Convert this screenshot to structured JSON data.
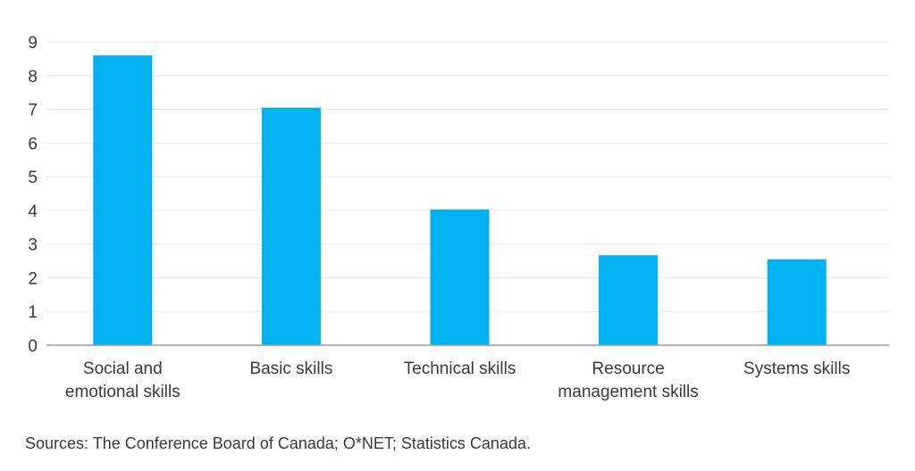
{
  "chart_data": {
    "type": "bar",
    "categories": [
      [
        "Social and",
        "emotional skills"
      ],
      [
        "Basic skills"
      ],
      [
        "Technical skills"
      ],
      [
        "Resource",
        "management skills"
      ],
      [
        "Systems skills"
      ]
    ],
    "values": [
      8.6,
      7.05,
      4.03,
      2.67,
      2.55
    ],
    "ylim": [
      0,
      9
    ],
    "yticks": [
      "0",
      "1",
      "2",
      "3",
      "4",
      "5",
      "6",
      "7",
      "8",
      "9"
    ],
    "title": "",
    "xlabel": "",
    "ylabel": "",
    "grid": true,
    "bar_color": "#00b2ef",
    "source": "Sources: The Conference Board of Canada; O*NET; Statistics Canada."
  }
}
